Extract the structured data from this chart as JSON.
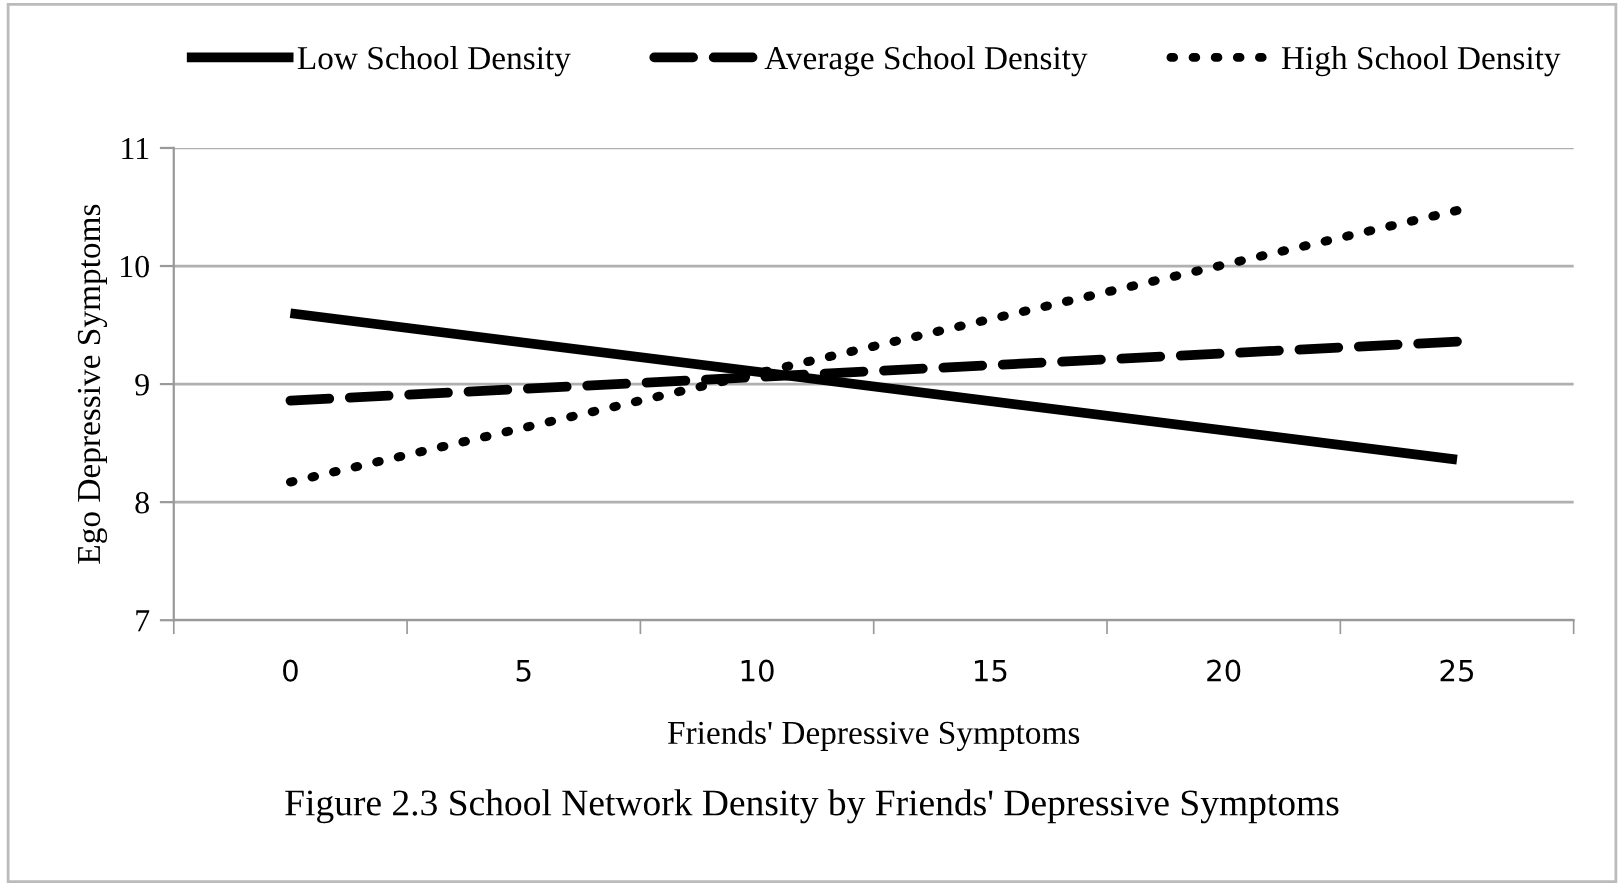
{
  "chart_data": {
    "type": "line",
    "xlabel": "Friends' Depressive Symptoms",
    "ylabel": "Ego Depressive Symptoms",
    "annotations": [
      "Figure 2.3 School Network Density by Friends' Depressive Symptoms"
    ],
    "x": [
      0,
      25
    ],
    "series": [
      {
        "name": "Low School Density",
        "color": "#000000",
        "line_style": "solid",
        "values": [
          9.6,
          8.36
        ]
      },
      {
        "name": "Average School Density",
        "color": "#000000",
        "line_style": "dashed",
        "values": [
          8.86,
          9.36
        ]
      },
      {
        "name": "High School Density",
        "color": "#000000",
        "line_style": "dotted",
        "values": [
          8.17,
          10.47
        ]
      }
    ],
    "xlim": [
      -2.5,
      27.5
    ],
    "xticks": [
      {
        "value": -2.5,
        "label": null
      },
      0,
      {
        "value": 2.5,
        "label": null
      },
      5,
      {
        "value": 7.5,
        "label": null
      },
      10,
      {
        "value": 12.5,
        "label": null
      },
      15,
      {
        "value": 17.5,
        "label": null
      },
      20,
      {
        "value": 22.5,
        "label": null
      },
      25,
      {
        "value": 27.5,
        "label": null
      }
    ],
    "ylim": [
      7,
      11
    ],
    "yticks": [
      7,
      8,
      9,
      10,
      11
    ],
    "grid": "y",
    "legend": "top",
    "marker": "none"
  }
}
